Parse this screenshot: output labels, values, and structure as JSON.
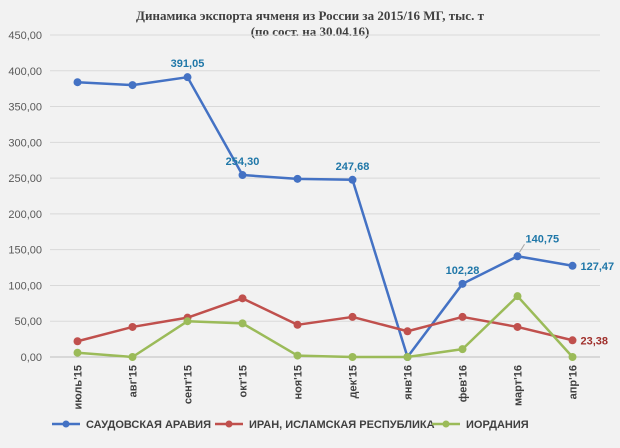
{
  "chart_data": {
    "type": "line",
    "title": "Динамика экспорта ячменя из России за  2015/16 МГ, тыс. т",
    "subtitle": "(по сост. на 30.04.16)",
    "categories": [
      "июль'15",
      "авг'15",
      "сент'15",
      "окт'15",
      "ноя'15",
      "дек'15",
      "янв'16",
      "фев'16",
      "март'16",
      "апр'16"
    ],
    "ylim": [
      0,
      450
    ],
    "yticks": [
      "0,00",
      "50,00",
      "100,00",
      "150,00",
      "200,00",
      "250,00",
      "300,00",
      "350,00",
      "400,00",
      "450,00"
    ],
    "ytick_values": [
      0,
      50,
      100,
      150,
      200,
      250,
      300,
      350,
      400,
      450
    ],
    "grid": true,
    "legend_position": "bottom",
    "series": [
      {
        "name": "САУДОВСКАЯ АРАВИЯ",
        "color": "#4472c4",
        "label_color": "#1f77a8",
        "values": [
          384,
          380,
          391.05,
          254.3,
          249,
          247.68,
          0,
          102.28,
          140.75,
          127.47
        ],
        "labels": [
          "",
          "",
          "391,05",
          "254,30",
          "",
          "247,68",
          "",
          "102,28",
          "140,75",
          "127,47"
        ]
      },
      {
        "name": "ИРАН, ИСЛАМСКАЯ РЕСПУБЛИКА",
        "color": "#c0504d",
        "label_color": "#a0302c",
        "values": [
          22,
          42,
          55,
          82,
          45,
          56,
          36,
          56,
          42,
          23.38
        ],
        "labels": [
          "",
          "",
          "",
          "",
          "",
          "",
          "",
          "",
          "",
          "23,38"
        ]
      },
      {
        "name": "ИОРДАНИЯ",
        "color": "#9bbb59",
        "label_color": "#6b8b39",
        "values": [
          6,
          0,
          50,
          47,
          2,
          0,
          0,
          11,
          85,
          0
        ],
        "labels": [
          "",
          "",
          "",
          "",
          "",
          "",
          "",
          "",
          "",
          ""
        ]
      }
    ]
  }
}
